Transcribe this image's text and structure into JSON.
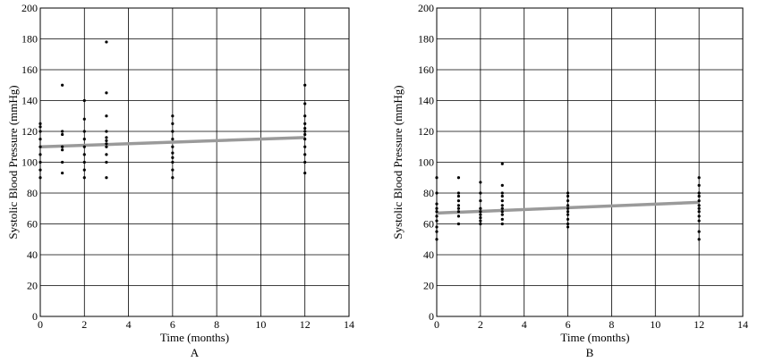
{
  "chart_data": [
    {
      "type": "scatter",
      "panel_label": "A",
      "xlabel": "Time (months)",
      "ylabel": "Systolic Blood Pressure (mmHg)",
      "xlim": [
        0,
        14
      ],
      "ylim": [
        0,
        200
      ],
      "xticks": [
        "0",
        "2",
        "4",
        "6",
        "8",
        "10",
        "12",
        "14"
      ],
      "yticks": [
        "0",
        "20",
        "40",
        "60",
        "80",
        "100",
        "120",
        "140",
        "160",
        "180",
        "200"
      ],
      "grid": true,
      "point_color": "#000000",
      "trend_color": "#9a9a9a",
      "points": [
        [
          0,
          90
        ],
        [
          0,
          95
        ],
        [
          0,
          100
        ],
        [
          0,
          105
        ],
        [
          0,
          110
        ],
        [
          0,
          115
        ],
        [
          0,
          120
        ],
        [
          0,
          123
        ],
        [
          0,
          125
        ],
        [
          1,
          93
        ],
        [
          1,
          100
        ],
        [
          1,
          108
        ],
        [
          1,
          110
        ],
        [
          1,
          118
        ],
        [
          1,
          120
        ],
        [
          1,
          150
        ],
        [
          2,
          90
        ],
        [
          2,
          95
        ],
        [
          2,
          100
        ],
        [
          2,
          105
        ],
        [
          2,
          110
        ],
        [
          2,
          115
        ],
        [
          2,
          120
        ],
        [
          2,
          128
        ],
        [
          2,
          140
        ],
        [
          3,
          90
        ],
        [
          3,
          100
        ],
        [
          3,
          105
        ],
        [
          3,
          110
        ],
        [
          3,
          112
        ],
        [
          3,
          114
        ],
        [
          3,
          116
        ],
        [
          3,
          120
        ],
        [
          3,
          130
        ],
        [
          3,
          145
        ],
        [
          3,
          178
        ],
        [
          6,
          90
        ],
        [
          6,
          95
        ],
        [
          6,
          100
        ],
        [
          6,
          103
        ],
        [
          6,
          106
        ],
        [
          6,
          110
        ],
        [
          6,
          115
        ],
        [
          6,
          120
        ],
        [
          6,
          125
        ],
        [
          6,
          130
        ],
        [
          12,
          93
        ],
        [
          12,
          100
        ],
        [
          12,
          105
        ],
        [
          12,
          110
        ],
        [
          12,
          115
        ],
        [
          12,
          118
        ],
        [
          12,
          120
        ],
        [
          12,
          122
        ],
        [
          12,
          125
        ],
        [
          12,
          130
        ],
        [
          12,
          138
        ],
        [
          12,
          150
        ]
      ],
      "trend_line": [
        [
          0,
          110
        ],
        [
          12,
          116
        ]
      ]
    },
    {
      "type": "scatter",
      "panel_label": "B",
      "xlabel": "Time (months)",
      "ylabel": "Systolic Blood Pressure (mmHg)",
      "xlim": [
        0,
        14
      ],
      "ylim": [
        0,
        200
      ],
      "xticks": [
        "0",
        "2",
        "4",
        "6",
        "8",
        "10",
        "12",
        "14"
      ],
      "yticks": [
        "0",
        "20",
        "40",
        "60",
        "80",
        "100",
        "120",
        "140",
        "160",
        "180",
        "200"
      ],
      "grid": true,
      "point_color": "#000000",
      "trend_color": "#9a9a9a",
      "points": [
        [
          0,
          50
        ],
        [
          0,
          55
        ],
        [
          0,
          58
        ],
        [
          0,
          62
        ],
        [
          0,
          65
        ],
        [
          0,
          68
        ],
        [
          0,
          70
        ],
        [
          0,
          73
        ],
        [
          0,
          80
        ],
        [
          0,
          90
        ],
        [
          1,
          60
        ],
        [
          1,
          65
        ],
        [
          1,
          68
        ],
        [
          1,
          70
        ],
        [
          1,
          72
        ],
        [
          1,
          75
        ],
        [
          1,
          78
        ],
        [
          1,
          80
        ],
        [
          1,
          90
        ],
        [
          2,
          60
        ],
        [
          2,
          62
        ],
        [
          2,
          64
        ],
        [
          2,
          66
        ],
        [
          2,
          68
        ],
        [
          2,
          70
        ],
        [
          2,
          75
        ],
        [
          2,
          80
        ],
        [
          2,
          87
        ],
        [
          3,
          60
        ],
        [
          3,
          63
        ],
        [
          3,
          66
        ],
        [
          3,
          68
        ],
        [
          3,
          70
        ],
        [
          3,
          72
        ],
        [
          3,
          75
        ],
        [
          3,
          78
        ],
        [
          3,
          80
        ],
        [
          3,
          85
        ],
        [
          3,
          99
        ],
        [
          6,
          58
        ],
        [
          6,
          60
        ],
        [
          6,
          63
        ],
        [
          6,
          66
        ],
        [
          6,
          68
        ],
        [
          6,
          70
        ],
        [
          6,
          72
        ],
        [
          6,
          75
        ],
        [
          6,
          78
        ],
        [
          6,
          80
        ],
        [
          12,
          50
        ],
        [
          12,
          55
        ],
        [
          12,
          62
        ],
        [
          12,
          65
        ],
        [
          12,
          68
        ],
        [
          12,
          70
        ],
        [
          12,
          72
        ],
        [
          12,
          75
        ],
        [
          12,
          78
        ],
        [
          12,
          80
        ],
        [
          12,
          85
        ],
        [
          12,
          90
        ]
      ],
      "trend_line": [
        [
          0,
          67
        ],
        [
          12,
          74
        ]
      ]
    }
  ]
}
